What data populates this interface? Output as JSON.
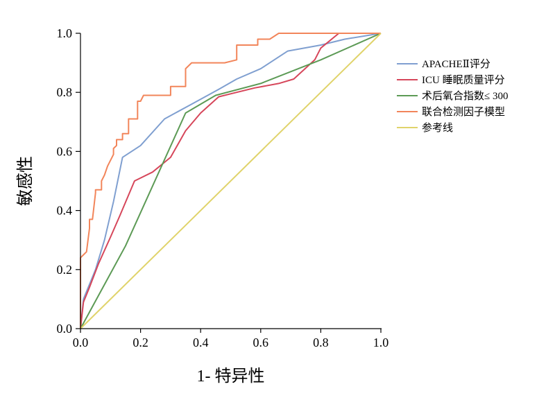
{
  "chart_data": {
    "type": "line",
    "title": "",
    "xlabel": "1- 特异性",
    "ylabel": "敏感性",
    "xlim": [
      0,
      1
    ],
    "ylim": [
      0,
      1
    ],
    "xticks": [
      "0.0",
      "0.2",
      "0.4",
      "0.6",
      "0.8",
      "1.0"
    ],
    "yticks": [
      "0.0",
      "0.2",
      "0.4",
      "0.6",
      "0.8",
      "1.0"
    ],
    "grid": false,
    "legend_position": "top-right",
    "series": [
      {
        "name": "APACHEⅡ评分",
        "color": "#7f9fd0",
        "x": [
          0.0,
          0.01,
          0.05,
          0.08,
          0.11,
          0.14,
          0.2,
          0.28,
          0.37,
          0.46,
          0.52,
          0.6,
          0.69,
          0.8,
          0.88,
          1.0
        ],
        "y": [
          0.0,
          0.1,
          0.2,
          0.3,
          0.43,
          0.58,
          0.62,
          0.71,
          0.76,
          0.81,
          0.845,
          0.88,
          0.94,
          0.96,
          0.98,
          1.0
        ]
      },
      {
        "name": "ICU 睡眠质量评分",
        "color": "#d6465a",
        "x": [
          0.0,
          0.01,
          0.03,
          0.06,
          0.1,
          0.13,
          0.18,
          0.24,
          0.3,
          0.35,
          0.4,
          0.46,
          0.5,
          0.58,
          0.66,
          0.71,
          0.78,
          0.8,
          0.86,
          1.0
        ],
        "y": [
          0.0,
          0.09,
          0.14,
          0.22,
          0.31,
          0.38,
          0.5,
          0.53,
          0.58,
          0.67,
          0.73,
          0.785,
          0.795,
          0.815,
          0.83,
          0.845,
          0.91,
          0.95,
          1.0,
          1.0
        ]
      },
      {
        "name": "术后氧合指数≤ 300",
        "color": "#5c9a55",
        "x": [
          0.0,
          0.15,
          0.35,
          0.45,
          0.6,
          0.8,
          1.0
        ],
        "y": [
          0.0,
          0.28,
          0.73,
          0.79,
          0.83,
          0.91,
          1.0
        ]
      },
      {
        "name": "联合检测因子模型",
        "color": "#f2855a",
        "x": [
          0.0,
          0.0,
          0.01,
          0.02,
          0.03,
          0.03,
          0.04,
          0.05,
          0.05,
          0.07,
          0.07,
          0.08,
          0.09,
          0.1,
          0.11,
          0.11,
          0.12,
          0.12,
          0.14,
          0.14,
          0.16,
          0.16,
          0.18,
          0.19,
          0.19,
          0.2,
          0.21,
          0.3,
          0.3,
          0.35,
          0.35,
          0.37,
          0.48,
          0.52,
          0.52,
          0.59,
          0.59,
          0.63,
          0.66,
          1.0
        ],
        "y": [
          0.0,
          0.24,
          0.25,
          0.26,
          0.34,
          0.37,
          0.37,
          0.46,
          0.47,
          0.47,
          0.5,
          0.52,
          0.55,
          0.57,
          0.59,
          0.61,
          0.62,
          0.64,
          0.64,
          0.66,
          0.66,
          0.71,
          0.71,
          0.71,
          0.77,
          0.77,
          0.79,
          0.79,
          0.82,
          0.82,
          0.88,
          0.9,
          0.9,
          0.91,
          0.96,
          0.96,
          0.98,
          0.98,
          1.0,
          1.0
        ]
      },
      {
        "name": "参考线",
        "color": "#e0d36a",
        "x": [
          0.0,
          1.0
        ],
        "y": [
          0.0,
          1.0
        ]
      }
    ]
  }
}
